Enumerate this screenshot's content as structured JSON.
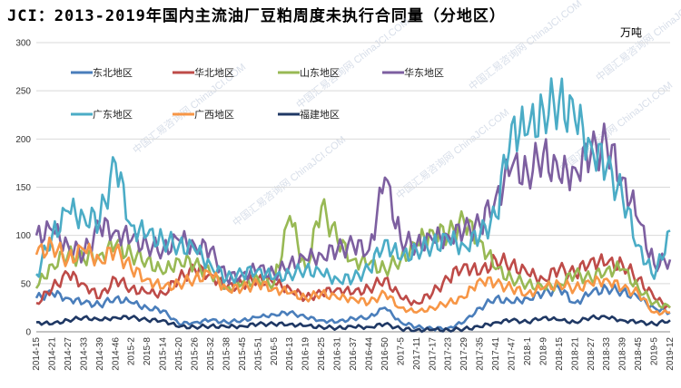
{
  "chart_data": {
    "type": "line",
    "title": "JCI：2013-2019年国内主流油厂豆粕周度未执行合同量（分地区）",
    "unit": "万吨",
    "ylim": [
      0,
      300
    ],
    "yticks": [
      0,
      50,
      100,
      150,
      200,
      250,
      300
    ],
    "grid": true,
    "legend_position": "top-left",
    "watermark": "中国汇易咨询网 ChinaJCI.COM",
    "categories": [
      "2014-15",
      "2014-21",
      "2014-27",
      "2014-33",
      "2014-39",
      "2014-46",
      "2015-2",
      "2015-8",
      "2015-14",
      "2015-20",
      "2015-26",
      "2015-32",
      "2015-38",
      "2015-45",
      "2015-51",
      "2016-5",
      "2016-13",
      "2016-19",
      "2016-25",
      "2016-31",
      "2016-37",
      "2016-44",
      "2016-50",
      "2017-5",
      "2017-11",
      "2017-17",
      "2017-23",
      "2017-29",
      "2017-35",
      "2017-41",
      "2017-47",
      "2018-1",
      "2018-9",
      "2018-15",
      "2018-21",
      "2018-27",
      "2018-33",
      "2018-39",
      "2018-45",
      "2019-5",
      "2019-12"
    ],
    "series": [
      {
        "name": "东北地区",
        "color": "#4a7ebb",
        "values": [
          35,
          40,
          35,
          30,
          28,
          35,
          30,
          25,
          22,
          8,
          10,
          12,
          10,
          12,
          15,
          18,
          20,
          15,
          12,
          10,
          14,
          15,
          25,
          10,
          5,
          3,
          4,
          10,
          25,
          35,
          30,
          35,
          40,
          45,
          30,
          40,
          45,
          42,
          35,
          25,
          20
        ]
      },
      {
        "name": "华北地区",
        "color": "#be4b48",
        "values": [
          30,
          45,
          60,
          50,
          35,
          55,
          45,
          40,
          40,
          55,
          65,
          60,
          45,
          50,
          55,
          50,
          45,
          35,
          40,
          45,
          40,
          45,
          55,
          35,
          30,
          40,
          55,
          70,
          60,
          75,
          70,
          60,
          55,
          65,
          60,
          75,
          70,
          70,
          55,
          35,
          25
        ]
      },
      {
        "name": "山东地区",
        "color": "#98b954",
        "values": [
          45,
          70,
          80,
          75,
          80,
          90,
          80,
          75,
          60,
          75,
          70,
          60,
          45,
          50,
          55,
          50,
          120,
          65,
          130,
          95,
          75,
          70,
          65,
          75,
          90,
          105,
          100,
          115,
          95,
          65,
          55,
          50,
          45,
          50,
          60,
          55,
          65,
          65,
          45,
          30,
          25
        ]
      },
      {
        "name": "华东地区",
        "color": "#7d5fa0",
        "values": [
          100,
          105,
          90,
          80,
          110,
          105,
          95,
          90,
          85,
          95,
          90,
          85,
          55,
          60,
          65,
          60,
          70,
          75,
          80,
          85,
          90,
          85,
          160,
          95,
          90,
          95,
          100,
          105,
          110,
          140,
          170,
          165,
          185,
          160,
          170,
          185,
          195,
          160,
          115,
          70,
          75
        ]
      },
      {
        "name": "广东地区",
        "color": "#4bacc6",
        "values": [
          60,
          100,
          125,
          120,
          115,
          175,
          110,
          100,
          95,
          90,
          85,
          70,
          55,
          60,
          65,
          55,
          60,
          65,
          60,
          55,
          55,
          65,
          95,
          75,
          85,
          90,
          95,
          90,
          100,
          120,
          215,
          205,
          230,
          240,
          220,
          195,
          170,
          140,
          90,
          55,
          105
        ]
      },
      {
        "name": "广西地区",
        "color": "#f79646",
        "values": [
          80,
          90,
          75,
          85,
          75,
          85,
          65,
          55,
          45,
          50,
          55,
          60,
          45,
          45,
          50,
          45,
          40,
          35,
          40,
          35,
          35,
          30,
          40,
          25,
          20,
          25,
          30,
          35,
          55,
          50,
          45,
          40,
          45,
          50,
          45,
          50,
          55,
          45,
          40,
          20,
          20
        ]
      },
      {
        "name": "福建地区",
        "color": "#1f3864",
        "values": [
          10,
          8,
          12,
          15,
          12,
          15,
          15,
          12,
          12,
          5,
          5,
          6,
          5,
          6,
          8,
          8,
          8,
          6,
          5,
          4,
          5,
          5,
          8,
          3,
          2,
          2,
          2,
          3,
          5,
          10,
          12,
          10,
          15,
          12,
          10,
          15,
          15,
          12,
          10,
          8,
          12
        ]
      }
    ]
  }
}
